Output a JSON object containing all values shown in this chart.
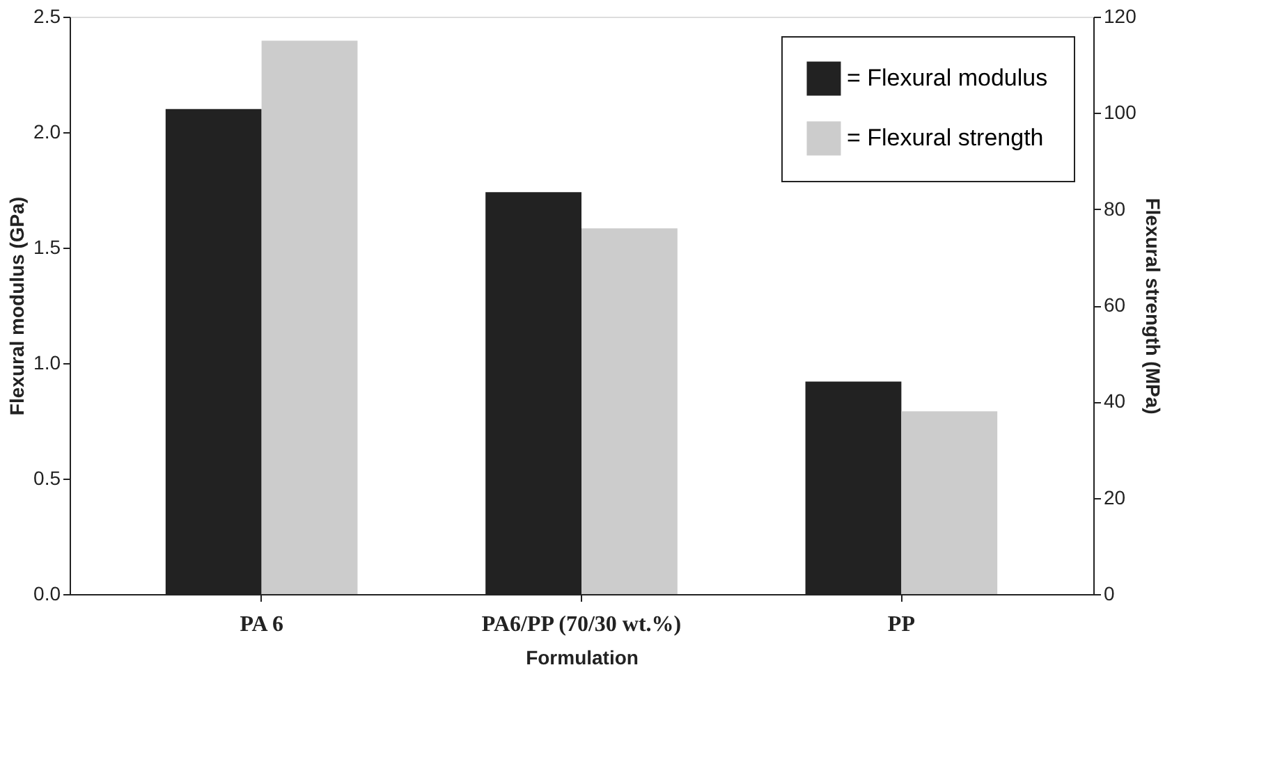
{
  "chart_data": {
    "type": "bar",
    "xlabel": "Formulation",
    "ylabel": "Flexural modulus (GPa)",
    "y2label": "Flexural strength (MPa)",
    "categories": [
      "PA 6",
      "PA6/PP (70/30 wt.%)",
      "PP"
    ],
    "series": [
      {
        "name": "= Flexural modulus",
        "color": "#222222",
        "values": [
          2.1,
          1.74,
          0.92
        ]
      },
      {
        "name": "= Flexural strength",
        "color": "#cccccc",
        "values": [
          115,
          76,
          38
        ],
        "axis": "y2"
      }
    ],
    "ylim": [
      0,
      2.5
    ],
    "yticks": [
      {
        "value": 0,
        "label": "0.0"
      },
      {
        "value": 0.5,
        "label": "0.5"
      },
      {
        "value": 1,
        "label": "1.0"
      },
      {
        "value": 1.5,
        "label": "1.5"
      },
      {
        "value": 2,
        "label": "2.0"
      },
      {
        "value": 2.5,
        "label": "2.5"
      }
    ],
    "y2lim": [
      0,
      120
    ],
    "y2ticks": [
      0,
      20,
      40,
      60,
      80,
      100,
      120
    ],
    "grid": false,
    "legend": "top right"
  }
}
